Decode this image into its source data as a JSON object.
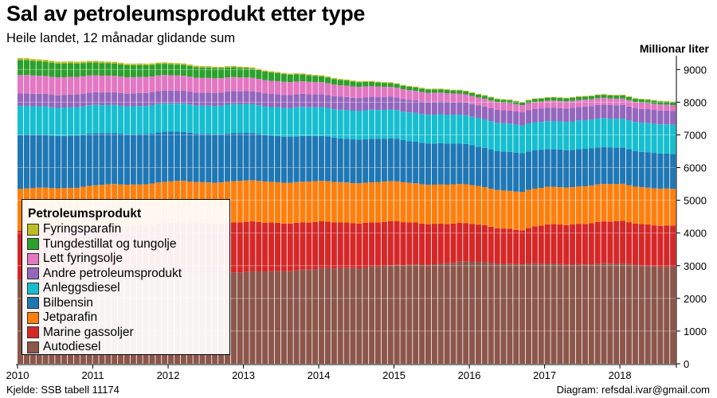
{
  "title": "Sal av petroleumsprodukt etter type",
  "subtitle": "Heile landet, 12 månadar glidande sum",
  "source": "Kjelde: SSB tabell 11174",
  "credit": "Diagram: refsdal.ivar@gmail.com",
  "chart_data": {
    "type": "bar",
    "stacked": true,
    "x_range": [
      "2010-01",
      "2018-09"
    ],
    "x_ticks": [
      "2010",
      "2011",
      "2012",
      "2013",
      "2014",
      "2015",
      "2016",
      "2017",
      "2018"
    ],
    "ylabel": "Millionar liter",
    "y_axis_position": "right",
    "ylim": [
      0,
      9300
    ],
    "y_ticks": [
      0,
      1000,
      2000,
      3000,
      4000,
      5000,
      6000,
      7000,
      8000,
      9000
    ],
    "grid": true,
    "legend_title": "Petroleumsprodukt",
    "legend_position": "bottom-left",
    "series_anchor_x": [
      0,
      12,
      24,
      36,
      48,
      60,
      72,
      80,
      84,
      96,
      104
    ],
    "series": [
      {
        "name": "Autodiesel",
        "color": "#8c564b",
        "values": [
          2570,
          2640,
          2720,
          2800,
          2900,
          3000,
          3120,
          3050,
          3050,
          3050,
          2950
        ]
      },
      {
        "name": "Marine gassoljer",
        "color": "#d62728",
        "values": [
          1480,
          1540,
          1580,
          1520,
          1420,
          1330,
          1150,
          1040,
          1200,
          1300,
          1250
        ]
      },
      {
        "name": "Jetparafin",
        "color": "#ff7f0e",
        "values": [
          1280,
          1260,
          1260,
          1260,
          1240,
          1220,
          1180,
          1160,
          1150,
          1140,
          1120
        ]
      },
      {
        "name": "Bilbensin",
        "color": "#1f77b4",
        "values": [
          1640,
          1580,
          1510,
          1450,
          1370,
          1300,
          1220,
          1180,
          1160,
          1110,
          1060
        ]
      },
      {
        "name": "Anleggsdiesel",
        "color": "#17becf",
        "values": [
          880,
          860,
          860,
          880,
          880,
          880,
          880,
          850,
          860,
          890,
          890
        ]
      },
      {
        "name": "Andre petroleumsprodukt",
        "color": "#9467bd",
        "values": [
          380,
          390,
          400,
          400,
          400,
          390,
          390,
          400,
          410,
          420,
          420
        ]
      },
      {
        "name": "Lett fyringsolje",
        "color": "#e377c2",
        "values": [
          570,
          520,
          470,
          420,
          370,
          300,
          250,
          220,
          220,
          200,
          180
        ]
      },
      {
        "name": "Tungdestillat og tungolje",
        "color": "#2ca02c",
        "values": [
          460,
          390,
          340,
          290,
          180,
          110,
          90,
          80,
          90,
          95,
          90
        ]
      },
      {
        "name": "Fyringsparafin",
        "color": "#bcbd22",
        "values": [
          60,
          52,
          45,
          38,
          30,
          25,
          22,
          20,
          20,
          20,
          20
        ]
      }
    ]
  }
}
